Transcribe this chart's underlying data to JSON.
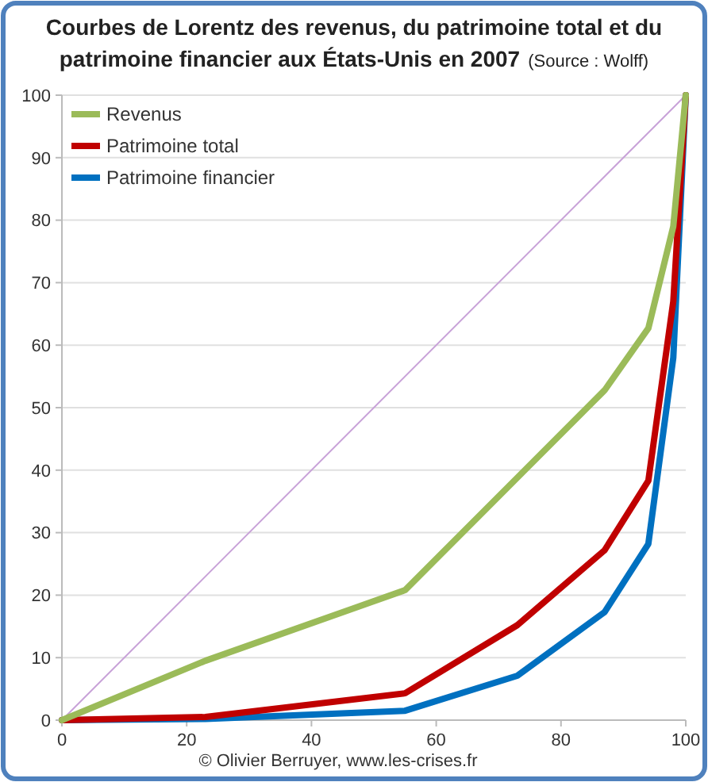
{
  "chart_data": {
    "type": "line",
    "title": "Courbes de Lorentz des revenus, du patrimoine total et du patrimoine financier aux États-Unis en 2007",
    "subtitle": "(Source : Wolff)",
    "xlim": [
      0,
      100
    ],
    "xticks": [
      0,
      20,
      40,
      60,
      80,
      100
    ],
    "ylim": [
      0,
      100
    ],
    "yticks": [
      0,
      10,
      20,
      30,
      40,
      50,
      60,
      70,
      80,
      90,
      100
    ],
    "grid": "y",
    "legend": "top left",
    "marker": "none",
    "line_style": "solid",
    "series": [
      {
        "name": "Revenus",
        "color": "#9bbb59",
        "x": [
          0,
          23,
          55,
          73,
          87,
          94,
          98,
          100
        ],
        "values": [
          0,
          9.5,
          20.8,
          38.8,
          52.8,
          62.7,
          79,
          100
        ]
      },
      {
        "name": "Patrimoine total",
        "color": "#c00000",
        "x": [
          0,
          23,
          55,
          73,
          87,
          94,
          98,
          100
        ],
        "values": [
          0,
          0.5,
          4.3,
          15.2,
          27.2,
          38.3,
          67,
          100
        ]
      },
      {
        "name": "Patrimoine financier",
        "color": "#0070c0",
        "x": [
          0,
          23,
          55,
          73,
          87,
          94,
          98,
          100
        ],
        "values": [
          0,
          0.2,
          1.5,
          7.1,
          17.3,
          28.2,
          58,
          100
        ]
      },
      {
        "color": "#c8a2d8",
        "x": [
          0,
          100
        ],
        "values": [
          0,
          100
        ]
      }
    ],
    "annotations": [
      "© Olivier Berruyer, www.les-crises.fr"
    ]
  }
}
